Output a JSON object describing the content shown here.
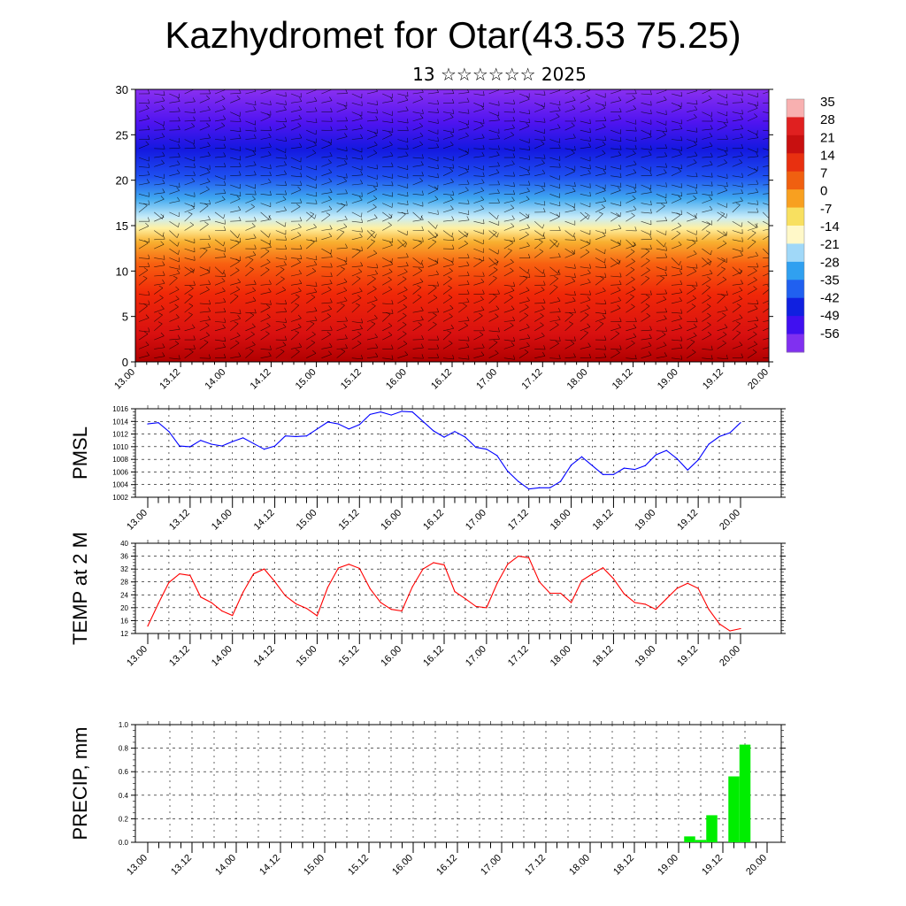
{
  "title": "Kazhydromet for Otar(43.53 75.25)",
  "subtitle": "13 ☆☆☆☆☆☆ 2025",
  "chart_data": [
    {
      "type": "heatmap",
      "description_source": "cross-section panel",
      "xlim": [
        0,
        168
      ],
      "ylim": [
        0,
        30
      ],
      "x_tick_labels": [
        "13.00",
        "13.12",
        "14.00",
        "14.12",
        "15.00",
        "15.12",
        "16.00",
        "16.12",
        "17.00",
        "17.12",
        "18.00",
        "18.12",
        "19.00",
        "19.12",
        "20.00"
      ],
      "y_ticks": [
        0,
        5,
        10,
        15,
        20,
        25,
        30
      ],
      "colorbar_labels": [
        "35",
        "28",
        "21",
        "14",
        "7",
        "0",
        "-7",
        "-14",
        "-21",
        "-28",
        "-35",
        "-42",
        "-49",
        "-56"
      ],
      "colorbar_colors": [
        "#f8b0b0",
        "#e02020",
        "#c81010",
        "#e83010",
        "#f06010",
        "#f8a020",
        "#f8e060",
        "#fff8c8",
        "#a0d8f8",
        "#30a0f0",
        "#2060f0",
        "#1020e0",
        "#4010f0",
        "#8030f0"
      ]
    },
    {
      "type": "line",
      "ylabel": "PMSL",
      "color": "#0000ff",
      "ylim": [
        1002,
        1016
      ],
      "y_ticks": [
        1002,
        1004,
        1006,
        1008,
        1010,
        1012,
        1014,
        1016
      ],
      "x_tick_labels": [
        "13.00",
        "13.12",
        "14.00",
        "14.12",
        "15.00",
        "15.12",
        "16.00",
        "16.12",
        "17.00",
        "17.12",
        "18.00",
        "18.12",
        "19.00",
        "19.12",
        "20.00"
      ],
      "x": [
        0,
        3,
        6,
        9,
        12,
        15,
        18,
        21,
        24,
        27,
        30,
        33,
        36,
        39,
        42,
        45,
        48,
        51,
        54,
        57,
        60,
        63,
        66,
        69,
        72,
        75,
        78,
        81,
        84,
        87,
        90,
        93,
        96,
        99,
        102,
        105,
        108,
        111,
        114,
        117,
        120,
        123,
        126,
        129,
        132,
        135,
        138,
        141,
        144,
        147,
        150,
        153,
        156,
        159,
        162,
        165,
        168
      ],
      "values": [
        1013.6,
        1013.8,
        1012.4,
        1010.1,
        1010.0,
        1011.0,
        1010.4,
        1010.1,
        1010.8,
        1011.4,
        1010.5,
        1009.6,
        1010.1,
        1011.7,
        1011.6,
        1011.7,
        1012.8,
        1013.9,
        1013.6,
        1012.8,
        1013.5,
        1015.1,
        1015.5,
        1015.0,
        1015.6,
        1015.5,
        1014.0,
        1012.5,
        1011.5,
        1012.4,
        1011.5,
        1009.9,
        1009.6,
        1008.6,
        1006.1,
        1004.5,
        1003.3,
        1003.5,
        1003.5,
        1004.5,
        1007.1,
        1008.4,
        1007.0,
        1005.6,
        1005.6,
        1006.6,
        1006.4,
        1007.0,
        1008.7,
        1009.4,
        1008.1,
        1006.3,
        1007.9,
        1010.4,
        1011.6,
        1012.2,
        1013.8
      ]
    },
    {
      "type": "line",
      "ylabel": "TEMP at 2 M",
      "color": "#ff0000",
      "ylim": [
        12,
        40
      ],
      "y_ticks": [
        12,
        16,
        20,
        24,
        28,
        32,
        36,
        40
      ],
      "x_tick_labels": [
        "13.00",
        "13.12",
        "14.00",
        "14.12",
        "15.00",
        "15.12",
        "16.00",
        "16.12",
        "17.00",
        "17.12",
        "18.00",
        "18.12",
        "19.00",
        "19.12",
        "20.00"
      ],
      "x": [
        0,
        3,
        6,
        9,
        12,
        15,
        18,
        21,
        24,
        27,
        30,
        33,
        36,
        39,
        42,
        45,
        48,
        51,
        54,
        57,
        60,
        63,
        66,
        69,
        72,
        75,
        78,
        81,
        84,
        87,
        90,
        93,
        96,
        99,
        102,
        105,
        108,
        111,
        114,
        117,
        120,
        123,
        126,
        129,
        132,
        135,
        138,
        141,
        144,
        147,
        150,
        153,
        156,
        159,
        162,
        165,
        168
      ],
      "values": [
        14.3,
        21.3,
        27.8,
        30.5,
        30.0,
        23.3,
        21.6,
        19.0,
        17.6,
        24.8,
        30.5,
        32.0,
        28.1,
        23.7,
        21.2,
        19.8,
        17.5,
        26.3,
        32.3,
        33.5,
        32.2,
        25.9,
        21.6,
        19.5,
        19.0,
        26.5,
        32.0,
        34.0,
        33.3,
        25.0,
        22.8,
        20.4,
        20.0,
        27.5,
        33.5,
        36.0,
        35.5,
        28.0,
        24.5,
        24.5,
        21.6,
        28.4,
        30.5,
        32.4,
        29.0,
        24.3,
        21.6,
        21.1,
        19.5,
        22.8,
        26.0,
        27.6,
        26.0,
        19.5,
        15.0,
        12.8,
        13.5
      ]
    },
    {
      "type": "bar",
      "ylabel": "PRECIP, mm",
      "color": "#00ee00",
      "ylim": [
        0.0,
        1.0
      ],
      "y_tick_labels": [
        "0.0",
        "0.2",
        "0.4",
        "0.6",
        "0.8",
        "1.0"
      ],
      "x_tick_labels": [
        "13.00",
        "13.12",
        "14.00",
        "14.12",
        "15.00",
        "15.12",
        "16.00",
        "16.12",
        "17.00",
        "17.12",
        "18.00",
        "18.12",
        "19.00",
        "19.12",
        "20.00"
      ],
      "x": [
        147,
        150,
        153,
        159,
        162
      ],
      "values": [
        0.05,
        0.02,
        0.23,
        0.56,
        0.83
      ]
    }
  ]
}
